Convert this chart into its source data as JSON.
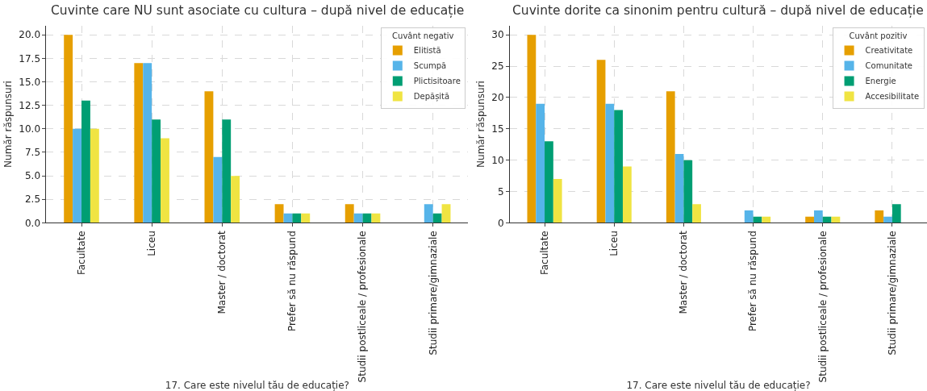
{
  "chart_data": [
    {
      "type": "bar",
      "title": "Cuvinte care NU sunt asociate cu cultura – după nivel de educație",
      "xlabel": "17. Care este nivelul tău de educație?",
      "ylabel": "Număr răspunsuri",
      "legend_title": "Cuvânt negativ",
      "categories": [
        "Facultate",
        "Liceu",
        "Master / doctorat",
        "Prefer să nu răspund",
        "Studii postliceale / profesionale",
        "Studii primare/gimnaziale"
      ],
      "series": [
        {
          "name": "Elitistă",
          "color": "#e69f00",
          "values": [
            20,
            17,
            14,
            2,
            2,
            null
          ]
        },
        {
          "name": "Scumpă",
          "color": "#56b4e9",
          "values": [
            10,
            17,
            7,
            1,
            1,
            2
          ]
        },
        {
          "name": "Plictisitoare",
          "color": "#009e73",
          "values": [
            13,
            11,
            11,
            1,
            1,
            1
          ]
        },
        {
          "name": "Depășită",
          "color": "#f0e442",
          "values": [
            10,
            9,
            5,
            1,
            1,
            2
          ]
        }
      ],
      "ylim": [
        0,
        21
      ],
      "yticks": [
        {
          "value": 0,
          "label": "0.0"
        },
        {
          "value": 2.5,
          "label": "2.5"
        },
        {
          "value": 5,
          "label": "5.0"
        },
        {
          "value": 7.5,
          "label": "7.5"
        },
        {
          "value": 10,
          "label": "10.0"
        },
        {
          "value": 12.5,
          "label": "12.5"
        },
        {
          "value": 15,
          "label": "15.0"
        },
        {
          "value": 17.5,
          "label": "17.5"
        },
        {
          "value": 20,
          "label": "20.0"
        }
      ],
      "grid": true,
      "legend": "top right"
    },
    {
      "type": "bar",
      "title": "Cuvinte dorite ca sinonim pentru cultură – după nivel de educație",
      "xlabel": "17. Care este nivelul tău de educație?",
      "ylabel": "Număr răspunsuri",
      "legend_title": "Cuvânt pozitiv",
      "categories": [
        "Facultate",
        "Liceu",
        "Master / doctorat",
        "Prefer să nu răspund",
        "Studii postliceale / profesionale",
        "Studii primare/gimnaziale"
      ],
      "series": [
        {
          "name": "Creativitate",
          "color": "#e69f00",
          "values": [
            30,
            26,
            21,
            null,
            1,
            2
          ]
        },
        {
          "name": "Comunitate",
          "color": "#56b4e9",
          "values": [
            19,
            19,
            11,
            2,
            2,
            1
          ]
        },
        {
          "name": "Energie",
          "color": "#009e73",
          "values": [
            13,
            18,
            10,
            1,
            1,
            3
          ]
        },
        {
          "name": "Accesibilitate",
          "color": "#f0e442",
          "values": [
            7,
            9,
            3,
            1,
            1,
            null
          ]
        }
      ],
      "ylim": [
        0,
        31.5
      ],
      "yticks": [
        0,
        5,
        10,
        15,
        20,
        25,
        30
      ],
      "grid": true,
      "legend": "top right"
    }
  ]
}
